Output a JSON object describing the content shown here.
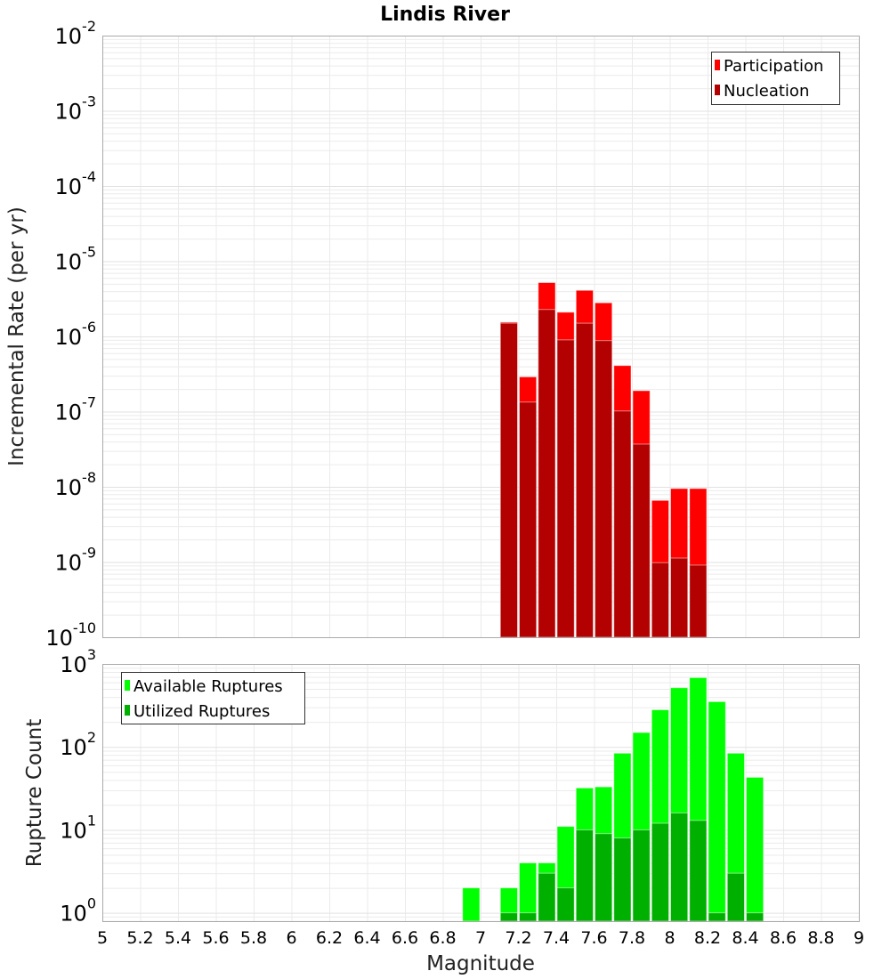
{
  "title": "Lindis River",
  "colors": {
    "participation": "#ff0000",
    "nucleation": "#b30000",
    "available": "#00ff00",
    "utilized": "#00b000",
    "grid": "#ebebeb",
    "border": "#aaaaaa"
  },
  "chart_data": [
    {
      "type": "bar",
      "title": "Lindis River",
      "xlabel": "Magnitude",
      "ylabel": "Incremental Rate (per yr)",
      "yscale": "log",
      "ylim_exponents": [
        -10,
        -2
      ],
      "xlim": [
        5,
        9
      ],
      "bin_width": 0.1,
      "legend_position": "top-right",
      "x": [
        7.15,
        7.25,
        7.35,
        7.45,
        7.55,
        7.65,
        7.75,
        7.85,
        7.95,
        8.05,
        8.15
      ],
      "series": [
        {
          "name": "Participation",
          "color_key": "participation",
          "values": [
            1.55e-06,
            2.9e-07,
            5.2e-06,
            2.1e-06,
            4.1e-06,
            2.8e-06,
            4.1e-07,
            1.9e-07,
            6.6e-09,
            9.5e-09,
            9.5e-09
          ]
        },
        {
          "name": "Nucleation",
          "color_key": "nucleation",
          "values": [
            1.5e-06,
            1.34e-07,
            2.28e-06,
            9e-07,
            1.5e-06,
            8.8e-07,
            1.02e-07,
            3.7e-08,
            9.8e-10,
            1.13e-09,
            9.1e-10
          ]
        }
      ],
      "ytick_exponents": [
        -10,
        -9,
        -8,
        -7,
        -6,
        -5,
        -4,
        -3,
        -2
      ]
    },
    {
      "type": "bar",
      "xlabel": "Magnitude",
      "ylabel": "Rupture Count",
      "yscale": "log",
      "ylim": [
        0.794,
        1000
      ],
      "xlim": [
        5,
        9
      ],
      "bin_width": 0.1,
      "legend_position": "top-left",
      "x": [
        6.95,
        7.15,
        7.25,
        7.35,
        7.45,
        7.55,
        7.65,
        7.75,
        7.85,
        7.95,
        8.05,
        8.15,
        8.25,
        8.35,
        8.45
      ],
      "series": [
        {
          "name": "Available Ruptures",
          "color_key": "available",
          "values": [
            2,
            2,
            4,
            4,
            11,
            32,
            33,
            84,
            149,
            280,
            517,
            684,
            351,
            84,
            43
          ]
        },
        {
          "name": "Utilized Ruptures",
          "color_key": "utilized",
          "values": [
            0,
            1,
            1,
            3,
            2,
            10,
            9,
            8,
            10,
            12,
            16,
            13,
            1,
            3,
            1
          ]
        }
      ],
      "ytick_exponents": [
        0,
        1,
        2,
        3
      ],
      "xticks": [
        "5",
        "5.2",
        "5.4",
        "5.6",
        "5.8",
        "6",
        "6.2",
        "6.4",
        "6.6",
        "6.8",
        "7",
        "7.2",
        "7.4",
        "7.6",
        "7.8",
        "8",
        "8.2",
        "8.4",
        "8.6",
        "8.8",
        "9"
      ]
    }
  ]
}
